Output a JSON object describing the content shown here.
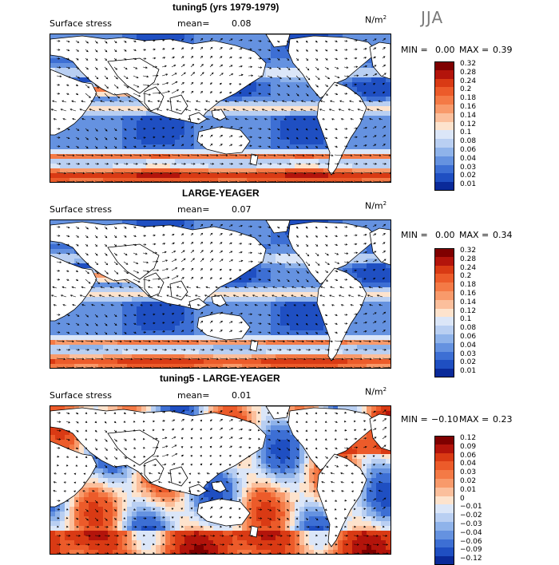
{
  "season": "JJA",
  "panels": [
    {
      "title": "tuning5 (yrs 1979-1979)",
      "variable": "Surface stress",
      "mean_label": "mean=",
      "mean_value": "0.08",
      "units": "N/m",
      "units_exp": "2",
      "min_label": "MIN =",
      "min_value": "0.00",
      "max_label": "MAX =",
      "max_value": "0.39",
      "scale": "abs",
      "levels": [
        "0.32",
        "0.28",
        "0.24",
        "0.2",
        "0.18",
        "0.16",
        "0.14",
        "0.12",
        "0.1",
        "0.08",
        "0.06",
        "0.04",
        "0.03",
        "0.02",
        "0.01"
      ]
    },
    {
      "title": "LARGE-YEAGER",
      "variable": "Surface stress",
      "mean_label": "mean=",
      "mean_value": "0.07",
      "units": "N/m",
      "units_exp": "2",
      "min_label": "MIN =",
      "min_value": "0.00",
      "max_label": "MAX =",
      "max_value": "0.34",
      "scale": "abs",
      "levels": [
        "0.32",
        "0.28",
        "0.24",
        "0.2",
        "0.18",
        "0.16",
        "0.14",
        "0.12",
        "0.1",
        "0.08",
        "0.06",
        "0.04",
        "0.03",
        "0.02",
        "0.01"
      ]
    },
    {
      "title": "tuning5 - LARGE-YEAGER",
      "variable": "Surface stress",
      "mean_label": "mean=",
      "mean_value": "0.01",
      "units": "N/m",
      "units_exp": "2",
      "min_label": "MIN =",
      "min_value": "−0.10",
      "max_label": "MAX =",
      "max_value": "0.23",
      "scale": "diff",
      "levels": [
        "0.12",
        "0.09",
        "0.06",
        "0.04",
        "0.03",
        "0.02",
        "0.01",
        "0",
        "−0.01",
        "−0.02",
        "−0.03",
        "−0.04",
        "−0.06",
        "−0.09",
        "−0.12"
      ]
    }
  ],
  "colors": {
    "scale": [
      "#7f0000",
      "#b3140b",
      "#d93a14",
      "#ec5b2a",
      "#f47a46",
      "#f89a6b",
      "#fbbf9c",
      "#fde3cd",
      "#dbe6f8",
      "#b9cff2",
      "#8fb3ea",
      "#6592e0",
      "#3d6fd4",
      "#1f4fc2",
      "#0a2a99"
    ],
    "land": "#ffffff",
    "arrow": "#000000"
  }
}
